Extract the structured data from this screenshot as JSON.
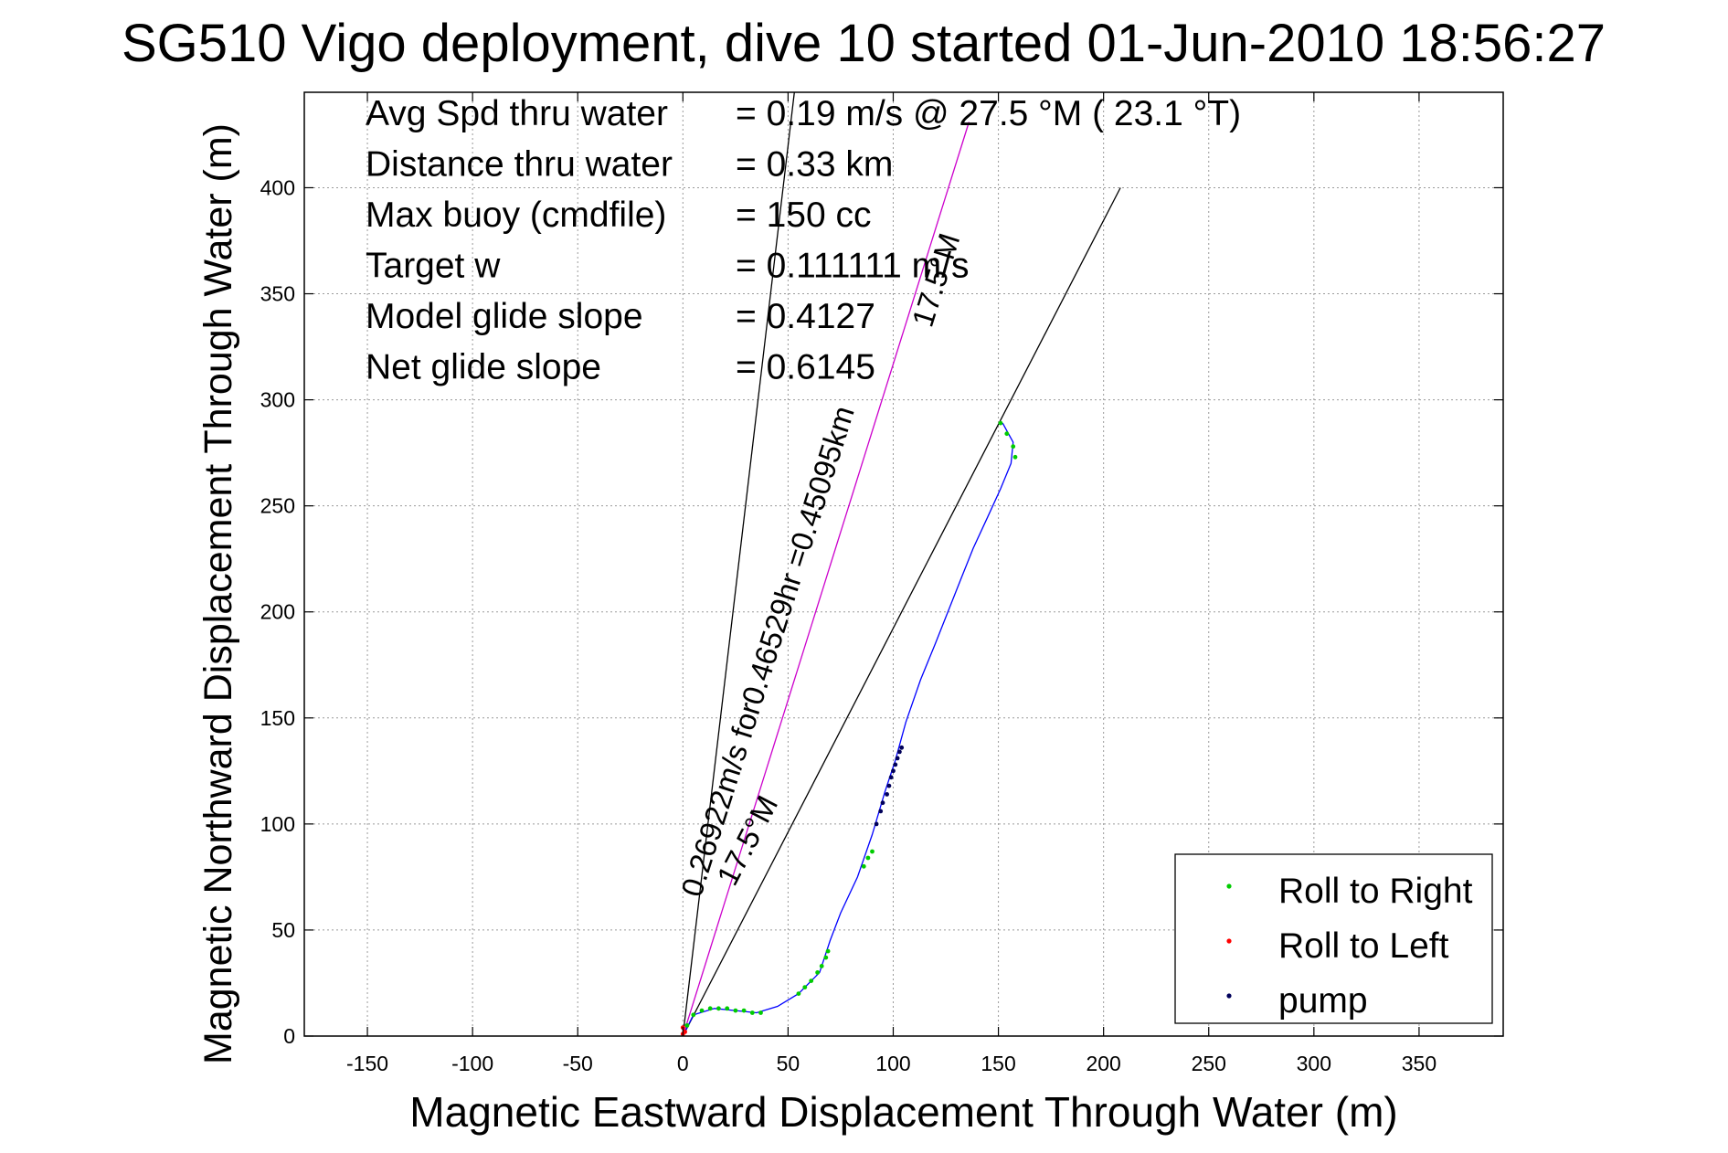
{
  "chart_data": {
    "type": "line",
    "title": "SG510 Vigo deployment, dive 10 started 01-Jun-2010 18:56:27",
    "xlabel": "Magnetic Eastward Displacement Through Water (m)",
    "ylabel": "Magnetic Northward Displacement Through Water (m)",
    "xlim": [
      -180,
      390
    ],
    "ylim": [
      0,
      445
    ],
    "grid": true,
    "x_ticks": [
      -150,
      -100,
      -50,
      0,
      50,
      100,
      150,
      200,
      250,
      300,
      350
    ],
    "y_ticks": [
      0,
      50,
      100,
      150,
      200,
      250,
      300,
      350,
      400
    ],
    "x_tick_labels": [
      "-150",
      "-100",
      "-50",
      "0",
      "50",
      "100",
      "150",
      "200",
      "250",
      "300",
      "350"
    ],
    "y_tick_labels": [
      "0",
      "50",
      "100",
      "150",
      "200",
      "250",
      "300",
      "350",
      "400"
    ],
    "info": [
      {
        "label": "Avg Spd thru water",
        "value": "=  0.19 m/s @  27.5 °M ( 23.1 °T)"
      },
      {
        "label": "Distance thru water",
        "value": "=  0.33 km"
      },
      {
        "label": "Max buoy (cmdfile)",
        "value": "= 150 cc"
      },
      {
        "label": "Target w",
        "value": "= 0.111111 m/s"
      },
      {
        "label": "Model glide slope",
        "value": "= 0.4127"
      },
      {
        "label": "Net glide slope",
        "value": "= 0.6145"
      }
    ],
    "reference_lines": [
      {
        "name": "",
        "color": "#000000",
        "points": [
          [
            0,
            0
          ],
          [
            208,
            400
          ]
        ]
      },
      {
        "name": "",
        "color": "#000000",
        "points": [
          [
            0,
            0
          ],
          [
            53,
            445
          ]
        ]
      },
      {
        "name": "",
        "color": "#cc00cc",
        "points": [
          [
            0,
            0
          ],
          [
            136,
            431
          ]
        ]
      }
    ],
    "annotations": [
      {
        "text": "0.26922m/s for0.46529hr =0.45095km",
        "x": 45,
        "y": 180,
        "angle": -72.5
      },
      {
        "text": "17.5°M",
        "x": 35,
        "y": 90,
        "angle": -62.5
      },
      {
        "text": "17.5°M",
        "x": 125,
        "y": 355,
        "angle": -72.5
      }
    ],
    "series": [
      {
        "name": "",
        "color": "#0000ff",
        "points": [
          [
            0,
            0
          ],
          [
            5,
            10
          ],
          [
            15,
            13
          ],
          [
            25,
            12
          ],
          [
            35,
            11
          ],
          [
            45,
            14
          ],
          [
            55,
            20
          ],
          [
            65,
            30
          ],
          [
            70,
            45
          ],
          [
            75,
            58
          ],
          [
            83,
            75
          ],
          [
            90,
            95
          ],
          [
            96,
            115
          ],
          [
            101,
            130
          ],
          [
            106,
            148
          ],
          [
            113,
            168
          ],
          [
            120,
            185
          ],
          [
            126,
            200
          ],
          [
            132,
            215
          ],
          [
            138,
            230
          ],
          [
            145,
            245
          ],
          [
            151,
            258
          ],
          [
            156,
            270
          ],
          [
            157,
            280
          ],
          [
            152,
            289
          ]
        ]
      },
      {
        "name": "Roll to Right",
        "color": "#00cc00",
        "points": [
          [
            2,
            5
          ],
          [
            5,
            10
          ],
          [
            9,
            12
          ],
          [
            13,
            13
          ],
          [
            17,
            13
          ],
          [
            21,
            13
          ],
          [
            25,
            12
          ],
          [
            29,
            12
          ],
          [
            33,
            11
          ],
          [
            37,
            11
          ],
          [
            55,
            20
          ],
          [
            58,
            23
          ],
          [
            61,
            26
          ],
          [
            64,
            30
          ],
          [
            66,
            33
          ],
          [
            68,
            37
          ],
          [
            69,
            40
          ],
          [
            86,
            80
          ],
          [
            88,
            84
          ],
          [
            90,
            87
          ],
          [
            151,
            289
          ],
          [
            154,
            284
          ],
          [
            157,
            278
          ],
          [
            158,
            273
          ]
        ]
      },
      {
        "name": "Roll to Left",
        "color": "#ff0000",
        "points": [
          [
            0,
            1
          ],
          [
            1,
            2
          ],
          [
            0,
            4
          ]
        ]
      },
      {
        "name": "pump",
        "color": "#00005a",
        "points": [
          [
            92,
            100
          ],
          [
            94,
            106
          ],
          [
            95,
            110
          ],
          [
            97,
            114
          ],
          [
            98,
            118
          ],
          [
            99,
            122
          ],
          [
            100,
            125
          ],
          [
            101,
            128
          ],
          [
            102,
            131
          ],
          [
            103,
            134
          ],
          [
            104,
            136
          ]
        ]
      }
    ],
    "legend": {
      "position": "bottom-right",
      "entries": [
        {
          "label": "Roll to Right",
          "color": "#00cc00"
        },
        {
          "label": "Roll to Left",
          "color": "#ff0000"
        },
        {
          "label": "pump",
          "color": "#00005a"
        }
      ]
    }
  }
}
